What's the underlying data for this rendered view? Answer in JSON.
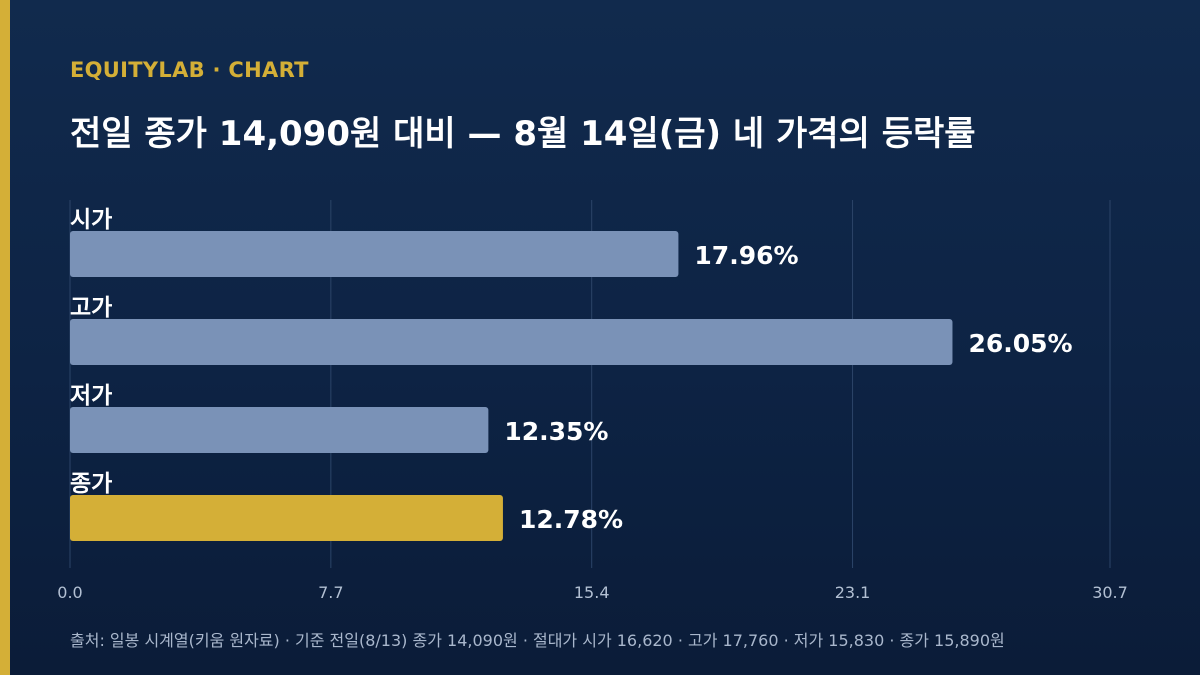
{
  "header": {
    "kicker": "EQUITYLAB · CHART",
    "title": "전일 종가 14,090원 대비 — 8월 14일(금) 네 가격의 등락률"
  },
  "footer": {
    "source": "출처: 일봉 시계열(키움 원자료) · 기준 전일(8/13) 종가 14,090원 · 절대가 시가 16,620 · 고가 17,760 · 저가 15,830 · 종가 15,890원"
  },
  "colors": {
    "accent": "#d4af37",
    "bar_default": "#7a92b7",
    "bar_highlight": "#d4af37",
    "gridline": "#2c4468",
    "tick_label": "#b3c0d3"
  },
  "chart_data": {
    "type": "bar",
    "orientation": "horizontal",
    "categories": [
      "시가",
      "고가",
      "저가",
      "종가"
    ],
    "values": [
      17.96,
      26.05,
      12.35,
      12.78
    ],
    "value_labels": [
      "17.96%",
      "26.05%",
      "12.35%",
      "12.78%"
    ],
    "highlight_index": 3,
    "xlim": [
      0,
      30.7
    ],
    "xticks": [
      0.0,
      7.7,
      15.4,
      23.1,
      30.7
    ],
    "xtick_labels": [
      "0.0",
      "7.7",
      "15.4",
      "23.1",
      "30.7"
    ],
    "grid": true,
    "xlabel": "",
    "ylabel": ""
  }
}
